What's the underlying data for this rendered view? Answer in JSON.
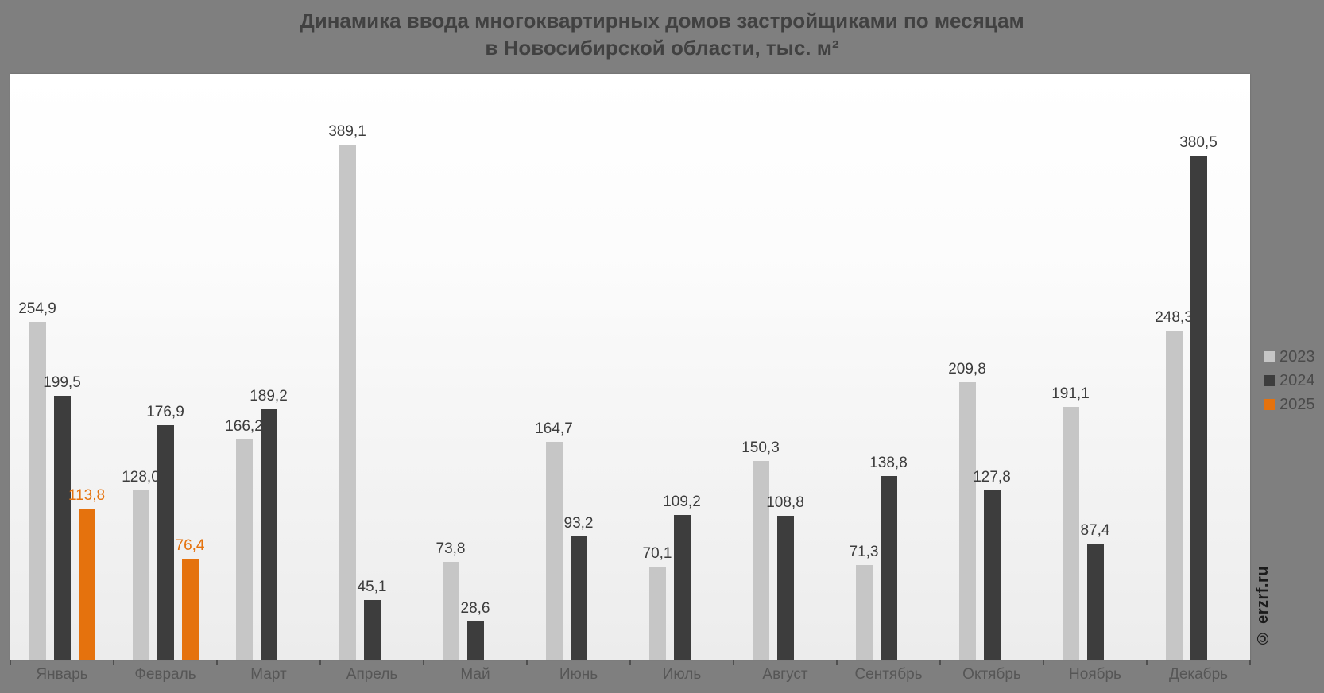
{
  "title": {
    "line1": "Динамика ввода многоквартирных домов застройщиками по месяцам",
    "line2": "в Новосибирской области, тыс. м²"
  },
  "watermark": "© erzrf.ru",
  "colors": {
    "background": "#7f7f7f",
    "title_text": "#414141",
    "value_label_default": "#3c3c3c",
    "month_label": "#565656",
    "legend_text": "#4a4a4a",
    "series_2023": "#c6c6c6",
    "series_2024": "#3d3d3d",
    "series_2025": "#e5720d"
  },
  "legend": {
    "position": "right",
    "items": [
      {
        "label": "2023",
        "color": "#c6c6c6"
      },
      {
        "label": "2024",
        "color": "#3d3d3d"
      },
      {
        "label": "2025",
        "color": "#e5720d"
      }
    ]
  },
  "chart_data": {
    "type": "bar",
    "title": "Динамика ввода многоквартирных домов застройщиками по месяцам в Новосибирской области, тыс. м²",
    "xlabel": "",
    "ylabel": "",
    "ylim": [
      0,
      442.5
    ],
    "grid": false,
    "value_axis_visible": false,
    "legend_position": "right",
    "categories": [
      "Январь",
      "Февраль",
      "Март",
      "Апрель",
      "Май",
      "Июнь",
      "Июль",
      "Август",
      "Сентябрь",
      "Октябрь",
      "Ноябрь",
      "Декабрь"
    ],
    "series": [
      {
        "name": "2023",
        "color": "#c6c6c6",
        "label_color": "#3c3c3c",
        "values": [
          254.9,
          128.0,
          166.2,
          389.1,
          73.8,
          164.7,
          70.1,
          150.3,
          71.3,
          209.8,
          191.1,
          248.3
        ],
        "labels": [
          "254,9",
          "128,0",
          "166,2",
          "389,1",
          "73,8",
          "164,7",
          "70,1",
          "150,3",
          "71,3",
          "209,8",
          "191,1",
          "248,3"
        ]
      },
      {
        "name": "2024",
        "color": "#3d3d3d",
        "label_color": "#3c3c3c",
        "values": [
          199.5,
          176.9,
          189.2,
          45.1,
          28.6,
          93.2,
          109.2,
          108.8,
          138.8,
          127.8,
          87.4,
          380.5
        ],
        "labels": [
          "199,5",
          "176,9",
          "189,2",
          "45,1",
          "28,6",
          "93,2",
          "109,2",
          "108,8",
          "138,8",
          "127,8",
          "87,4",
          "380,5"
        ]
      },
      {
        "name": "2025",
        "color": "#e5720d",
        "label_color": "#e5720d",
        "values": [
          113.8,
          76.4,
          null,
          null,
          null,
          null,
          null,
          null,
          null,
          null,
          null,
          null
        ],
        "labels": [
          "113,8",
          "76,4",
          null,
          null,
          null,
          null,
          null,
          null,
          null,
          null,
          null,
          null
        ]
      }
    ]
  }
}
